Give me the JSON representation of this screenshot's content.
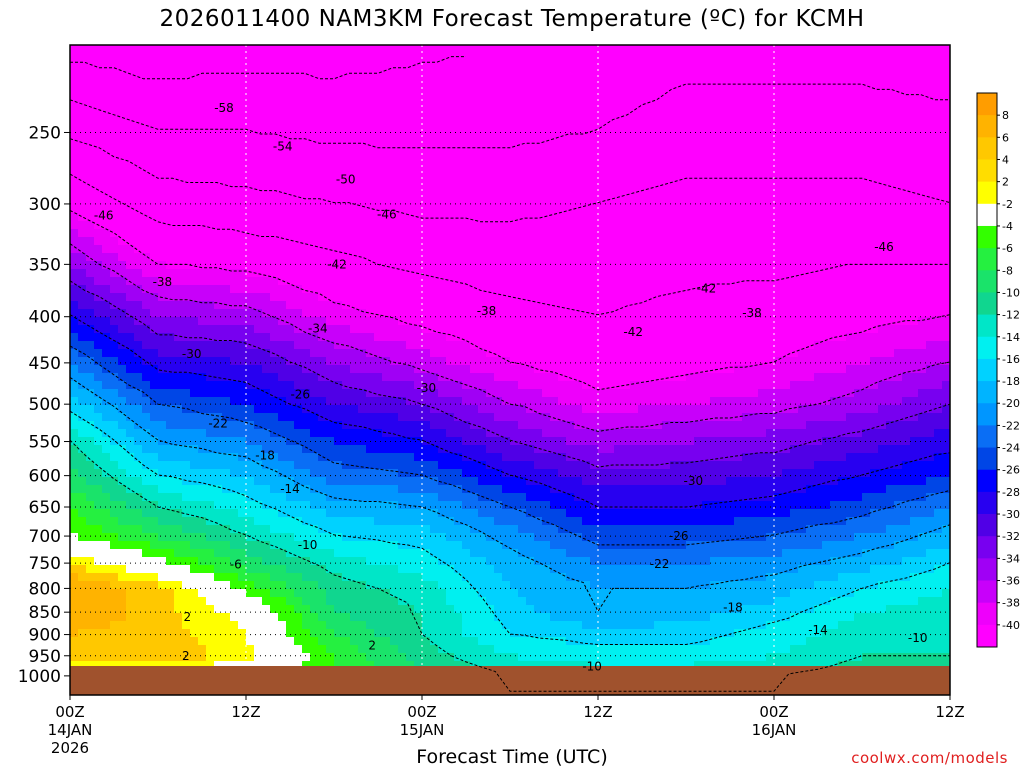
{
  "header": {
    "title": "2026011400 NAM3KM Forecast Temperature (ºC) for KCMH"
  },
  "footer": {
    "x_axis_title": "Forecast Time (UTC)",
    "credit": "coolwx.com/models"
  },
  "chart_data": {
    "type": "heatmap",
    "title": "2026011400 NAM3KM Forecast Temperature (ºC) for KCMH",
    "xlabel": "Forecast Time (UTC)",
    "ylabel": "",
    "y_axis": "pressure (hPa), log scale, inverted",
    "ylim": [
      1050,
      200
    ],
    "xlim": [
      0,
      60
    ],
    "grid": true,
    "y_ticks": [
      250,
      300,
      350,
      400,
      450,
      500,
      550,
      600,
      650,
      700,
      750,
      800,
      850,
      900,
      950,
      1000
    ],
    "x_ticks": [
      {
        "hour": 0,
        "label": "00Z",
        "date": "14JAN",
        "year": "2026"
      },
      {
        "hour": 12,
        "label": "12Z",
        "date": "",
        "year": ""
      },
      {
        "hour": 24,
        "label": "00Z",
        "date": "15JAN",
        "year": ""
      },
      {
        "hour": 36,
        "label": "12Z",
        "date": "",
        "year": ""
      },
      {
        "hour": 48,
        "label": "00Z",
        "date": "16JAN",
        "year": ""
      },
      {
        "hour": 60,
        "label": "12Z",
        "date": "",
        "year": ""
      }
    ],
    "legend": {
      "placement": "right",
      "labels": [
        "8",
        "6",
        "4",
        "2",
        "-2",
        "-4",
        "-6",
        "-8",
        "-10",
        "-12",
        "-14",
        "-16",
        "-18",
        "-20",
        "-22",
        "-24",
        "-26",
        "-28",
        "-30",
        "-32",
        "-34",
        "-36",
        "-38",
        "-40"
      ],
      "colors": [
        "#ff9d00",
        "#ffb300",
        "#ffc800",
        "#ffdd00",
        "#ffff00",
        "#ffffff",
        "#33ff00",
        "#25f040",
        "#1ae36a",
        "#10d68f",
        "#00e6c8",
        "#00f0f0",
        "#00d2ff",
        "#00b4ff",
        "#0096ff",
        "#0a6ef5",
        "#0046e6",
        "#0000ff",
        "#2800f0",
        "#5000e6",
        "#7800f0",
        "#a000f5",
        "#c800fa",
        "#ee00fb",
        "#ff00ff"
      ]
    },
    "times": [
      0,
      6,
      12,
      18,
      24,
      30,
      36,
      42,
      48,
      54,
      60
    ],
    "levels": [
      1000,
      950,
      900,
      850,
      800,
      750,
      700,
      650,
      600,
      550,
      500,
      450,
      400,
      350,
      300,
      250,
      200
    ],
    "temperature_rows": [
      [
        1,
        5,
        6,
        8,
        8,
        4,
        -2,
        -4,
        -7,
        -10,
        -15,
        -20,
        -26,
        -32,
        -39,
        -47,
        -56
      ],
      [
        -1,
        6,
        5,
        5,
        5,
        -1,
        -6,
        -10,
        -14,
        -18,
        -22,
        -27,
        -32,
        -38,
        -44,
        -50,
        -57
      ],
      [
        0,
        3,
        2,
        1,
        -3,
        -7,
        -10,
        -13,
        -16,
        -20,
        -24,
        -28,
        -33,
        -39,
        -45,
        -50,
        -56
      ],
      [
        -4,
        -4,
        -6,
        -8,
        -9,
        -11,
        -14,
        -17,
        -21,
        -24,
        -28,
        -32,
        -37,
        -41,
        -46,
        -51,
        -56
      ],
      [
        -8,
        -9,
        -10,
        -10,
        -11,
        -13,
        -15,
        -18,
        -22,
        -26,
        -30,
        -35,
        -39,
        -43,
        -47,
        -51,
        -55
      ],
      [
        -10,
        -12,
        -14,
        -15,
        -16,
        -17,
        -19,
        -22,
        -26,
        -30,
        -34,
        -38,
        -41,
        -44,
        -47,
        -51,
        -54
      ],
      [
        -11,
        -13,
        -15,
        -18,
        -18,
        -20,
        -23,
        -26,
        -29,
        -33,
        -37,
        -40,
        -42,
        -44,
        -46,
        -50,
        -53
      ],
      [
        -11,
        -13,
        -15,
        -17,
        -18,
        -20,
        -23,
        -26,
        -29,
        -32,
        -36,
        -39,
        -41,
        -43,
        -45,
        -48,
        -52
      ],
      [
        -10,
        -12,
        -13,
        -15,
        -17,
        -19,
        -22,
        -25,
        -28,
        -31,
        -35,
        -38,
        -40,
        -43,
        -45,
        -48,
        -52
      ],
      [
        -9,
        -10,
        -11,
        -12,
        -14,
        -17,
        -20,
        -23,
        -26,
        -29,
        -33,
        -36,
        -39,
        -42,
        -45,
        -48,
        -52
      ],
      [
        -9,
        -10,
        -10,
        -11,
        -12,
        -14,
        -17,
        -20,
        -24,
        -27,
        -30,
        -34,
        -38,
        -42,
        -46,
        -49,
        -52
      ]
    ],
    "contour_labels": [
      {
        "text": "-58",
        "hour": 10.5,
        "hPa": 235
      },
      {
        "text": "-54",
        "hour": 14.5,
        "hPa": 259
      },
      {
        "text": "-50",
        "hour": 18.8,
        "hPa": 282
      },
      {
        "text": "-46",
        "hour": 2.3,
        "hPa": 309
      },
      {
        "text": "-46",
        "hour": 21.6,
        "hPa": 308
      },
      {
        "text": "-46",
        "hour": 55.5,
        "hPa": 335
      },
      {
        "text": "-42",
        "hour": 18.2,
        "hPa": 350
      },
      {
        "text": "-42",
        "hour": 43.4,
        "hPa": 372
      },
      {
        "text": "-42",
        "hour": 38.4,
        "hPa": 416
      },
      {
        "text": "-38",
        "hour": 6.3,
        "hPa": 366
      },
      {
        "text": "-38",
        "hour": 28.4,
        "hPa": 394
      },
      {
        "text": "-38",
        "hour": 46.5,
        "hPa": 396
      },
      {
        "text": "-34",
        "hour": 16.9,
        "hPa": 412
      },
      {
        "text": "-30",
        "hour": 8.3,
        "hPa": 440
      },
      {
        "text": "-30",
        "hour": 24.3,
        "hPa": 480
      },
      {
        "text": "-30",
        "hour": 42.5,
        "hPa": 608
      },
      {
        "text": "-26",
        "hour": 15.7,
        "hPa": 488
      },
      {
        "text": "-26",
        "hour": 41.5,
        "hPa": 700
      },
      {
        "text": "-22",
        "hour": 10.1,
        "hPa": 525
      },
      {
        "text": "-22",
        "hour": 40.2,
        "hPa": 752
      },
      {
        "text": "-18",
        "hour": 13.3,
        "hPa": 570
      },
      {
        "text": "-18",
        "hour": 45.2,
        "hPa": 840
      },
      {
        "text": "-14",
        "hour": 15.0,
        "hPa": 621
      },
      {
        "text": "-14",
        "hour": 51.0,
        "hPa": 890
      },
      {
        "text": "-10",
        "hour": 16.2,
        "hPa": 716
      },
      {
        "text": "-10",
        "hour": 57.8,
        "hPa": 908
      },
      {
        "text": "-10",
        "hour": 35.6,
        "hPa": 976
      },
      {
        "text": "-6",
        "hour": 11.3,
        "hPa": 753
      },
      {
        "text": "2",
        "hour": 8.0,
        "hPa": 861
      },
      {
        "text": "2",
        "hour": 20.6,
        "hPa": 925
      },
      {
        "text": "2",
        "hour": 7.9,
        "hPa": 950
      }
    ]
  }
}
